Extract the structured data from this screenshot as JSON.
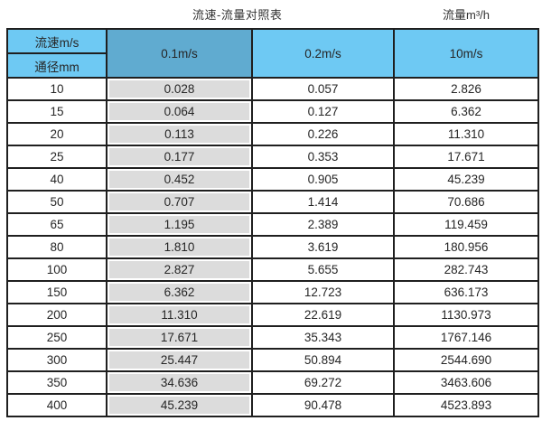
{
  "header": {
    "title": "流速-流量对照表",
    "unit_label": "流量m³/h"
  },
  "table": {
    "corner_top": "流速m/s",
    "corner_bottom": "通径mm",
    "columns": [
      "0.1m/s",
      "0.2m/s",
      "10m/s"
    ],
    "rows": [
      {
        "dn": "10",
        "v01": "0.028",
        "v02": "0.057",
        "v10": "2.826"
      },
      {
        "dn": "15",
        "v01": "0.064",
        "v02": "0.127",
        "v10": "6.362"
      },
      {
        "dn": "20",
        "v01": "0.113",
        "v02": "0.226",
        "v10": "11.310"
      },
      {
        "dn": "25",
        "v01": "0.177",
        "v02": "0.353",
        "v10": "17.671"
      },
      {
        "dn": "40",
        "v01": "0.452",
        "v02": "0.905",
        "v10": "45.239"
      },
      {
        "dn": "50",
        "v01": "0.707",
        "v02": "1.414",
        "v10": "70.686"
      },
      {
        "dn": "65",
        "v01": "1.195",
        "v02": "2.389",
        "v10": "119.459"
      },
      {
        "dn": "80",
        "v01": "1.810",
        "v02": "3.619",
        "v10": "180.956"
      },
      {
        "dn": "100",
        "v01": "2.827",
        "v02": "5.655",
        "v10": "282.743"
      },
      {
        "dn": "150",
        "v01": "6.362",
        "v02": "12.723",
        "v10": "636.173"
      },
      {
        "dn": "200",
        "v01": "11.310",
        "v02": "22.619",
        "v10": "1130.973"
      },
      {
        "dn": "250",
        "v01": "17.671",
        "v02": "35.343",
        "v10": "1767.146"
      },
      {
        "dn": "300",
        "v01": "25.447",
        "v02": "50.894",
        "v10": "2544.690"
      },
      {
        "dn": "350",
        "v01": "34.636",
        "v02": "69.272",
        "v10": "3463.606"
      },
      {
        "dn": "400",
        "v01": "45.239",
        "v02": "90.478",
        "v10": "4523.893"
      }
    ]
  },
  "colors": {
    "header_blue": "#6ec9f3",
    "header_blue_dark": "#60abd0",
    "grey_column": "#dcdcdc",
    "border": "#1f1f1f",
    "text": "#262626"
  },
  "chart_data": {
    "type": "table",
    "title": "流速-流量对照表",
    "unit_label": "流量m³/h",
    "column_headers": [
      "通径mm",
      "0.1m/s",
      "0.2m/s",
      "10m/s"
    ],
    "row_header_label": "流速m/s",
    "rows": [
      [
        10,
        0.028,
        0.057,
        2.826
      ],
      [
        15,
        0.064,
        0.127,
        6.362
      ],
      [
        20,
        0.113,
        0.226,
        11.31
      ],
      [
        25,
        0.177,
        0.353,
        17.671
      ],
      [
        40,
        0.452,
        0.905,
        45.239
      ],
      [
        50,
        0.707,
        1.414,
        70.686
      ],
      [
        65,
        1.195,
        2.389,
        119.459
      ],
      [
        80,
        1.81,
        3.619,
        180.956
      ],
      [
        100,
        2.827,
        5.655,
        282.743
      ],
      [
        150,
        6.362,
        12.723,
        636.173
      ],
      [
        200,
        11.31,
        22.619,
        1130.973
      ],
      [
        250,
        17.671,
        35.343,
        1767.146
      ],
      [
        300,
        25.447,
        50.894,
        2544.69
      ],
      [
        350,
        34.636,
        69.272,
        3463.606
      ],
      [
        400,
        45.239,
        90.478,
        4523.893
      ]
    ]
  }
}
